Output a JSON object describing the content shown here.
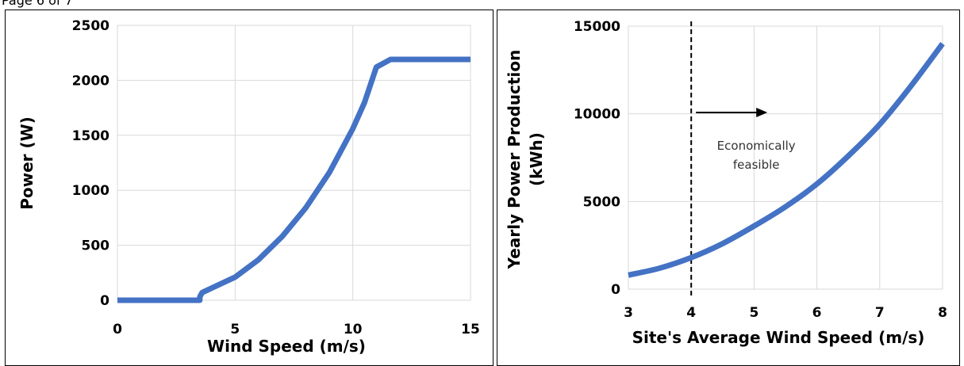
{
  "header_fragment": "Page 6 of 7",
  "chart_data": [
    {
      "type": "line",
      "title": "",
      "xlabel": "Wind Speed (m/s)",
      "ylabel": "Power (W)",
      "xlim": [
        0,
        15
      ],
      "ylim": [
        0,
        2500
      ],
      "xticks": [
        0,
        5,
        10,
        15
      ],
      "yticks": [
        0,
        500,
        1000,
        1500,
        2000,
        2500
      ],
      "grid": true,
      "series": [
        {
          "color": "#4472C4",
          "x": [
            0,
            3.5,
            3.5,
            3.6,
            4,
            5,
            6,
            7,
            8,
            9,
            10,
            10.5,
            11,
            11.6,
            15
          ],
          "y": [
            0,
            0,
            30,
            70,
            110,
            210,
            370,
            580,
            840,
            1160,
            1560,
            1800,
            2120,
            2190,
            2190
          ]
        }
      ]
    },
    {
      "type": "line",
      "title": "",
      "xlabel": "Site's Average Wind Speed (m/s)",
      "ylabel": "Yearly Power Production\n(kWh)",
      "xlim": [
        3,
        8
      ],
      "ylim": [
        0,
        15000
      ],
      "xticks": [
        3,
        4,
        5,
        6,
        7,
        8
      ],
      "yticks": [
        0,
        5000,
        10000,
        15000
      ],
      "grid": true,
      "series": [
        {
          "color": "#4472C4",
          "x": [
            3,
            3.5,
            4,
            4.5,
            5,
            5.5,
            6,
            6.5,
            7,
            7.5,
            8
          ],
          "y": [
            800,
            1200,
            1800,
            2600,
            3600,
            4700,
            6000,
            7600,
            9400,
            11600,
            14000
          ]
        }
      ],
      "annotation": {
        "vline_x": 4,
        "arrow_label_line1": "Economically",
        "arrow_label_line2": "feasible"
      }
    }
  ]
}
